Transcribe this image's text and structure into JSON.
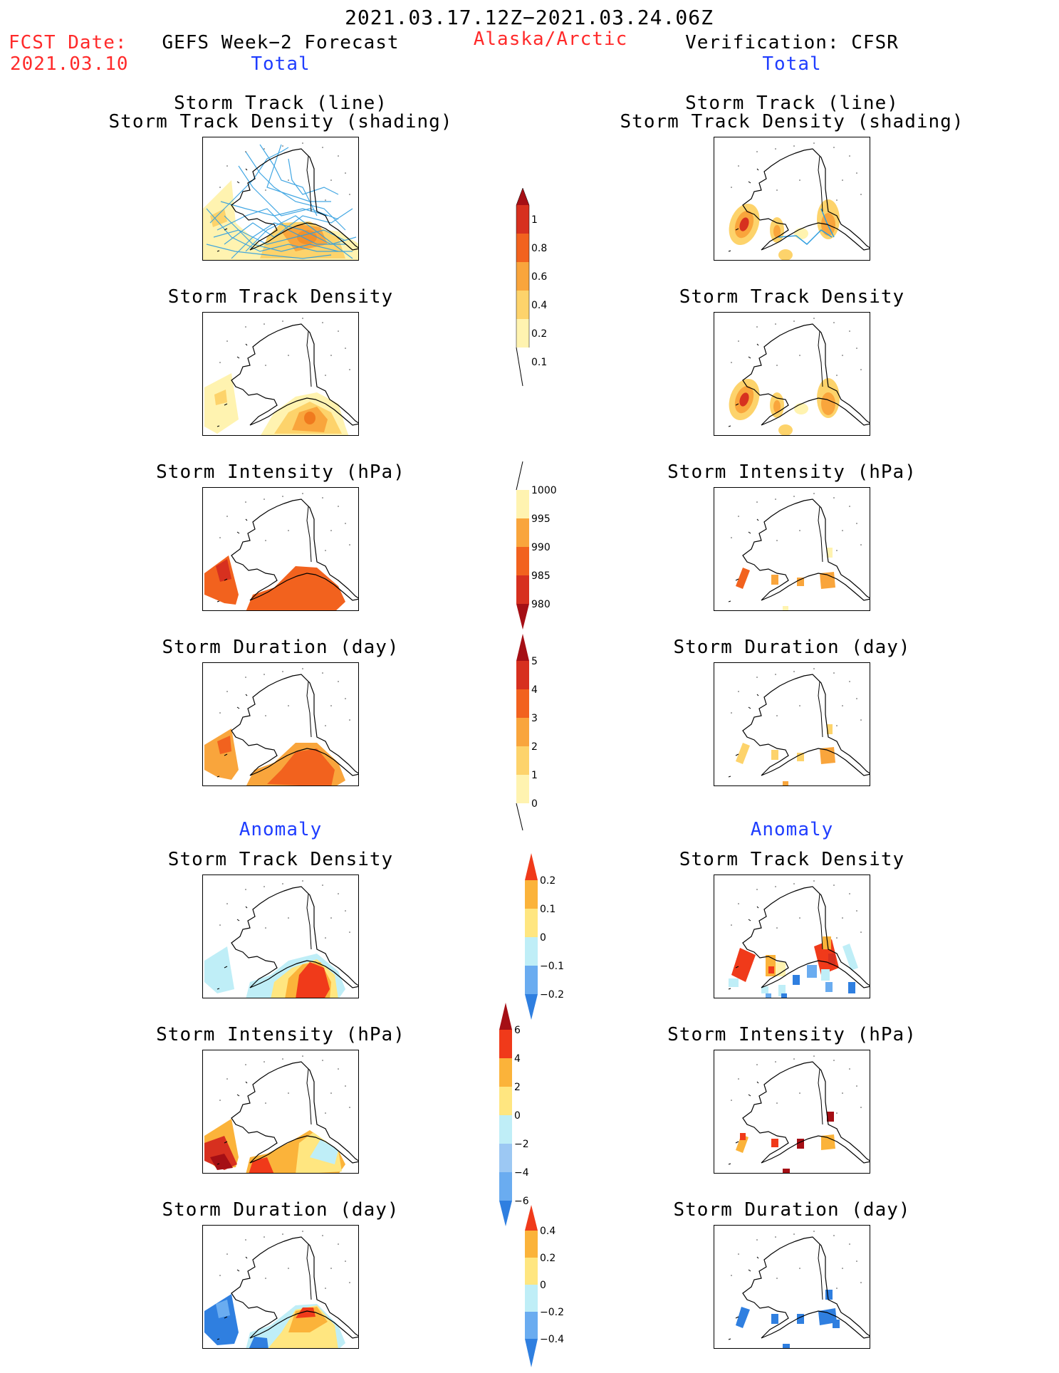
{
  "header": {
    "period": "2021.03.17.12Z−2021.03.24.06Z",
    "fcst_label": "FCST Date:",
    "fcst_date": "2021.03.10",
    "left_title": "GEFS Week−2 Forecast",
    "region": "Alaska/Arctic",
    "right_title": "Verification: CFSR",
    "total_left": "Total",
    "total_right": "Total",
    "anomaly_left": "Anomaly",
    "anomaly_right": "Anomaly"
  },
  "panels": {
    "track_line_1": "Storm Track (line)",
    "track_line_2": "Storm Track Density (shading)",
    "track_density": "Storm Track Density",
    "intensity": "Storm Intensity (hPa)",
    "duration": "Storm Duration (day)"
  },
  "colorbars": {
    "density": [
      "1",
      "0.8",
      "0.6",
      "0.4",
      "0.2",
      "0.1"
    ],
    "intensity": [
      "1000",
      "995",
      "990",
      "985",
      "980"
    ],
    "duration": [
      "5",
      "4",
      "3",
      "2",
      "1",
      "0"
    ],
    "anom_density": [
      "0.2",
      "0.1",
      "0",
      "−0.1",
      "−0.2"
    ],
    "anom_intensity": [
      "6",
      "4",
      "2",
      "0",
      "−2",
      "−4",
      "−6"
    ],
    "anom_duration": [
      "0.4",
      "0.2",
      "0",
      "−0.2",
      "−0.4"
    ]
  },
  "colors": {
    "title_red": "#ff2a2a",
    "title_blue": "#1f3dff",
    "track_line": "#2f9ee0"
  }
}
